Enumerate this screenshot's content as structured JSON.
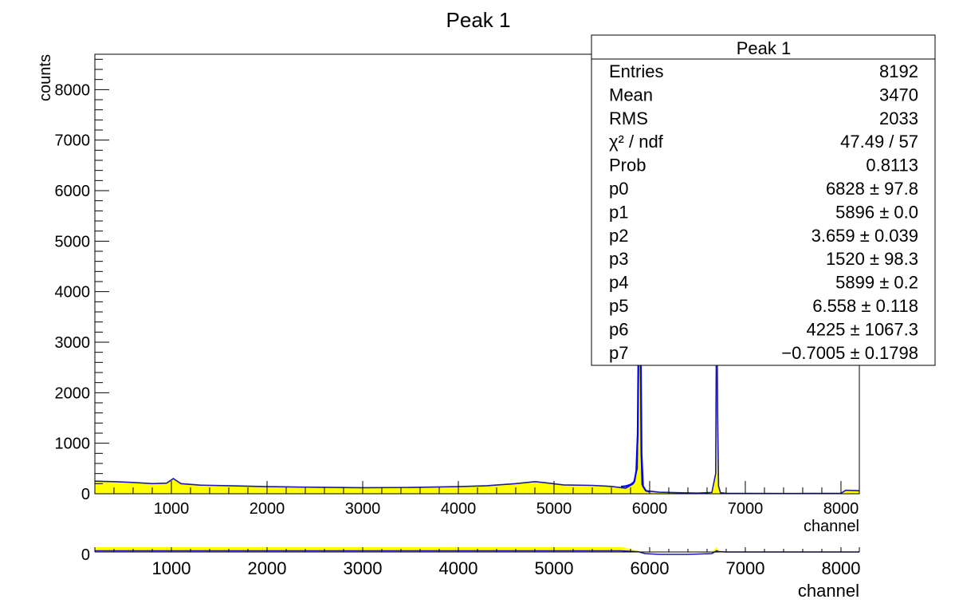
{
  "chart_data": [
    {
      "type": "histogram",
      "title": "Peak 1",
      "xlabel": "channel",
      "ylabel": "counts",
      "xlim": [
        200,
        8192
      ],
      "ylim": [
        0,
        8700
      ],
      "x_ticks": [
        1000,
        2000,
        3000,
        4000,
        5000,
        6000,
        7000,
        8000
      ],
      "y_ticks": [
        0,
        1000,
        2000,
        3000,
        4000,
        5000,
        6000,
        7000,
        8000
      ],
      "histogram_fill_color": "#ffff00",
      "histogram_line_color": "#1a1aa8",
      "fit_line_color": "#0000ff",
      "spectrum": {
        "x": [
          200,
          400,
          600,
          800,
          950,
          1020,
          1100,
          1300,
          1600,
          2000,
          2500,
          3000,
          3500,
          4000,
          4300,
          4600,
          4800,
          4900,
          5100,
          5400,
          5600,
          5750,
          5830,
          5870,
          5880,
          5890,
          5896,
          5902,
          5910,
          5920,
          5960,
          6100,
          6300,
          6500,
          6650,
          6690,
          6700,
          6710,
          6720,
          6740,
          6800,
          7000,
          7500,
          8000,
          8050,
          8192
        ],
        "y": [
          250,
          240,
          225,
          200,
          210,
          300,
          200,
          170,
          160,
          140,
          130,
          120,
          125,
          140,
          160,
          200,
          240,
          220,
          175,
          165,
          145,
          110,
          200,
          500,
          2000,
          4000,
          4800,
          3200,
          900,
          180,
          60,
          30,
          20,
          12,
          25,
          400,
          4200,
          1600,
          150,
          20,
          10,
          8,
          5,
          10,
          70,
          60
        ]
      },
      "fit": {
        "x": [
          5700,
          5750,
          5800,
          5840,
          5860,
          5875,
          5885,
          5890,
          5893,
          5896,
          5899,
          5902,
          5907,
          5915,
          5930,
          5960,
          6000
        ],
        "y": [
          140,
          150,
          180,
          240,
          450,
          1200,
          3500,
          5200,
          6200,
          6900,
          6600,
          5400,
          2800,
          800,
          150,
          60,
          40
        ]
      },
      "stats": {
        "title": "Peak 1",
        "rows": [
          {
            "label": "Entries",
            "value": "8192"
          },
          {
            "label": "Mean",
            "value": "3470"
          },
          {
            "label": "RMS",
            "value": "2033"
          },
          {
            "label": "χ² / ndf",
            "value": "47.49 / 57"
          },
          {
            "label": "Prob",
            "value": "0.8113"
          },
          {
            "label": "p0",
            "value": "6828 ± 97.8"
          },
          {
            "label": "p1",
            "value": "5896 ± 0.0"
          },
          {
            "label": "p2",
            "value": "3.659 ± 0.039"
          },
          {
            "label": "p3",
            "value": "1520 ± 98.3"
          },
          {
            "label": "p4",
            "value": "5899 ± 0.2"
          },
          {
            "label": "p5",
            "value": "6.558 ± 0.118"
          },
          {
            "label": "p6",
            "value": "4225 ± 1067.3"
          },
          {
            "label": "p7",
            "value": "−0.7005 ± 0.1798"
          }
        ]
      }
    },
    {
      "type": "histogram",
      "title": "",
      "xlabel": "channel",
      "ylabel": "",
      "xlim": [
        200,
        8192
      ],
      "y_ticks": [
        0
      ],
      "x_ticks": [
        1000,
        2000,
        3000,
        4000,
        5000,
        6000,
        7000,
        8000
      ],
      "fill_color": "#ffff00",
      "line_color": "#1a1aa8",
      "residual_band": {
        "x": [
          200,
          5700,
          5800,
          5880,
          5950,
          6100,
          6400,
          6650,
          6700,
          6720,
          6800,
          8192
        ],
        "fill": [
          1,
          1,
          0.6,
          0.2,
          -0.2,
          -0.3,
          -0.3,
          -0.2,
          1,
          0.3,
          0,
          0
        ]
      }
    }
  ]
}
